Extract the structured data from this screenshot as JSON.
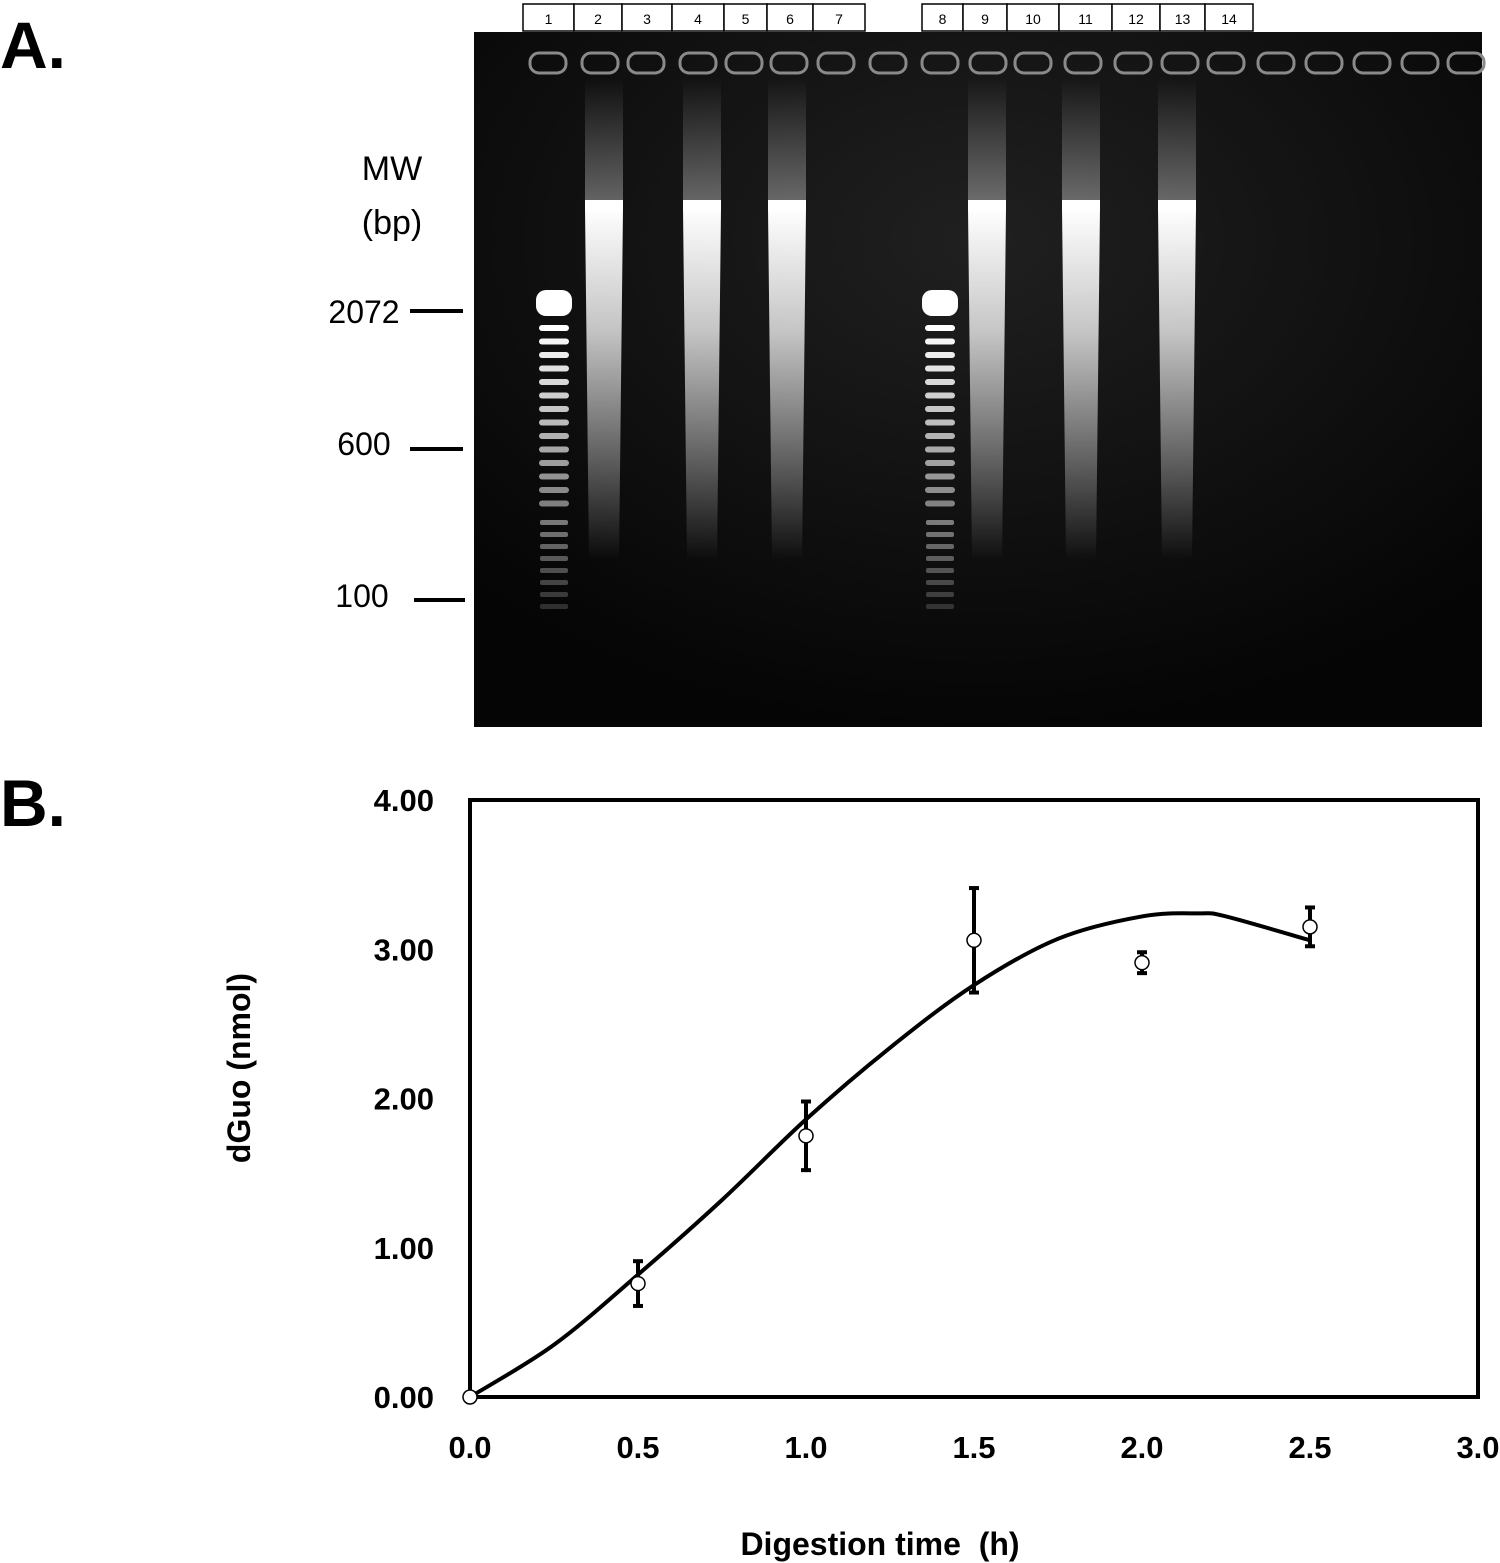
{
  "panels": {
    "a_label": "A.",
    "b_label": "B."
  },
  "gel": {
    "lane_labels_left": [
      "1",
      "2",
      "3",
      "4",
      "5",
      "6",
      "7"
    ],
    "lane_labels_right": [
      "8",
      "9",
      "10",
      "11",
      "12",
      "13",
      "14"
    ],
    "mw_label_line1": "MW",
    "mw_label_line2": "(bp)",
    "markers": [
      {
        "label": "2072"
      },
      {
        "label": "600"
      },
      {
        "label": "100"
      }
    ],
    "colors": {
      "gel_background": "#0b0b0b",
      "band": "#ffffff"
    }
  },
  "chart_data": {
    "type": "scatter",
    "xlabel": "Digestion time  (h)",
    "ylabel": "dGuo (nmol)",
    "xlim": [
      0.0,
      3.0
    ],
    "ylim": [
      0.0,
      4.0
    ],
    "x_ticks": [
      "0.0",
      "0.5",
      "1.0",
      "1.5",
      "2.0",
      "2.5",
      "3.0"
    ],
    "y_ticks": [
      "0.00",
      "1.00",
      "2.00",
      "3.00",
      "4.00"
    ],
    "points": [
      {
        "x": 0.0,
        "y": 0.0,
        "err": 0.0
      },
      {
        "x": 0.5,
        "y": 0.76,
        "err": 0.15
      },
      {
        "x": 1.0,
        "y": 1.75,
        "err": 0.23
      },
      {
        "x": 1.5,
        "y": 3.06,
        "err": 0.35
      },
      {
        "x": 2.0,
        "y": 2.91,
        "err": 0.07
      },
      {
        "x": 2.5,
        "y": 3.15,
        "err": 0.13
      }
    ],
    "fit_curve": {
      "type": "polynomial",
      "x": [
        0.0,
        0.25,
        0.5,
        0.75,
        1.0,
        1.25,
        1.5,
        1.75,
        2.0,
        2.17,
        2.25,
        2.5
      ],
      "y": [
        0.0,
        0.35,
        0.82,
        1.32,
        1.86,
        2.34,
        2.76,
        3.07,
        3.22,
        3.24,
        3.22,
        3.06
      ]
    },
    "grid": false,
    "legend": "none"
  }
}
